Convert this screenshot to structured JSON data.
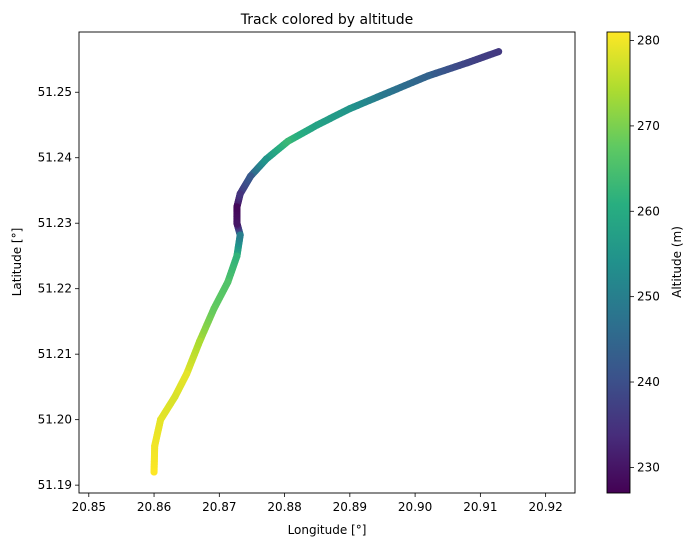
{
  "chart_data": {
    "type": "scatter",
    "title": "Track colored by altitude",
    "xlabel": "Longitude [°]",
    "ylabel": "Latitude [°]",
    "xlim": [
      20.8485,
      20.9245
    ],
    "ylim": [
      51.1888,
      51.2592
    ],
    "xticks": [
      20.85,
      20.86,
      20.87,
      20.88,
      20.89,
      20.9,
      20.91,
      20.92
    ],
    "xtick_labels": [
      "20.85",
      "20.86",
      "20.87",
      "20.88",
      "20.89",
      "20.90",
      "20.91",
      "20.92"
    ],
    "yticks": [
      51.19,
      51.2,
      51.21,
      51.22,
      51.23,
      51.24,
      51.25
    ],
    "ytick_labels": [
      "51.19",
      "51.20",
      "51.21",
      "51.22",
      "51.23",
      "51.24",
      "51.25"
    ],
    "colorbar": {
      "label": "Altitude (m)",
      "colormap": "viridis",
      "range": [
        227,
        281
      ],
      "ticks": [
        230,
        240,
        250,
        260,
        270,
        280
      ],
      "tick_labels": [
        "230",
        "240",
        "250",
        "260",
        "270",
        "280"
      ]
    },
    "grid": false,
    "track": [
      {
        "lon": 20.86,
        "lat": 51.192,
        "alt": 281
      },
      {
        "lon": 20.8601,
        "lat": 51.196,
        "alt": 280
      },
      {
        "lon": 20.861,
        "lat": 51.2,
        "alt": 279
      },
      {
        "lon": 20.8632,
        "lat": 51.2035,
        "alt": 278
      },
      {
        "lon": 20.865,
        "lat": 51.207,
        "alt": 279
      },
      {
        "lon": 20.867,
        "lat": 51.212,
        "alt": 274
      },
      {
        "lon": 20.8692,
        "lat": 51.217,
        "alt": 268
      },
      {
        "lon": 20.8713,
        "lat": 51.221,
        "alt": 266
      },
      {
        "lon": 20.8727,
        "lat": 51.225,
        "alt": 262
      },
      {
        "lon": 20.8732,
        "lat": 51.2282,
        "alt": 250
      },
      {
        "lon": 20.8727,
        "lat": 51.23,
        "alt": 230
      },
      {
        "lon": 20.8727,
        "lat": 51.2325,
        "alt": 228
      },
      {
        "lon": 20.8732,
        "lat": 51.2345,
        "alt": 235
      },
      {
        "lon": 20.8748,
        "lat": 51.2372,
        "alt": 242
      },
      {
        "lon": 20.8772,
        "lat": 51.2398,
        "alt": 255
      },
      {
        "lon": 20.8805,
        "lat": 51.2425,
        "alt": 263
      },
      {
        "lon": 20.885,
        "lat": 51.245,
        "alt": 258
      },
      {
        "lon": 20.89,
        "lat": 51.2475,
        "alt": 255
      },
      {
        "lon": 20.896,
        "lat": 51.25,
        "alt": 248
      },
      {
        "lon": 20.902,
        "lat": 51.2525,
        "alt": 244
      },
      {
        "lon": 20.908,
        "lat": 51.2545,
        "alt": 238
      },
      {
        "lon": 20.9128,
        "lat": 51.2562,
        "alt": 236
      }
    ]
  }
}
